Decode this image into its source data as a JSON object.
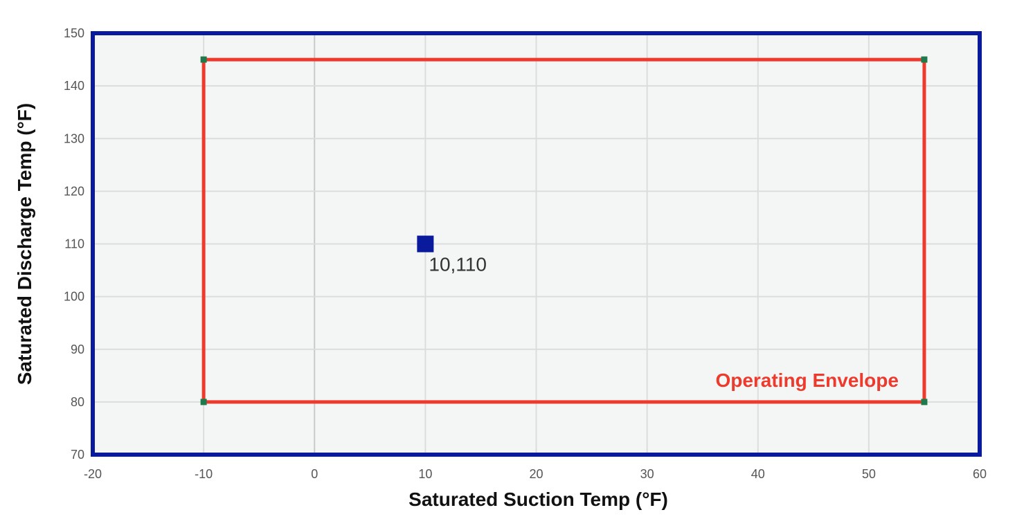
{
  "chart_data": {
    "type": "scatter",
    "title": "",
    "xlabel": "Saturated Suction Temp (°F)",
    "ylabel": "Saturated Discharge Temp (°F)",
    "xlim": [
      -20,
      60
    ],
    "ylim": [
      70,
      150
    ],
    "x_ticks": [
      -20,
      -10,
      0,
      10,
      20,
      30,
      40,
      50,
      60
    ],
    "y_ticks": [
      70,
      80,
      90,
      100,
      110,
      120,
      130,
      140,
      150
    ],
    "grid": true,
    "envelope": {
      "name": "Operating Envelope",
      "points": [
        {
          "x": -10,
          "y": 80
        },
        {
          "x": -10,
          "y": 145
        },
        {
          "x": 55,
          "y": 145
        },
        {
          "x": 55,
          "y": 80
        }
      ]
    },
    "operating_point": {
      "x": 10,
      "y": 110,
      "label": "10,110"
    }
  },
  "colors": {
    "plot_background": "#f4f6f6",
    "plot_border": "#0a1a9c",
    "grid": "#dcdcdc",
    "zero_line": "#c8c8c8",
    "envelope_line": "#ee3a2c",
    "envelope_vertex": "#1e7a4a",
    "point": "#0a1a9c",
    "envelope_label": "#ee3a2c"
  }
}
